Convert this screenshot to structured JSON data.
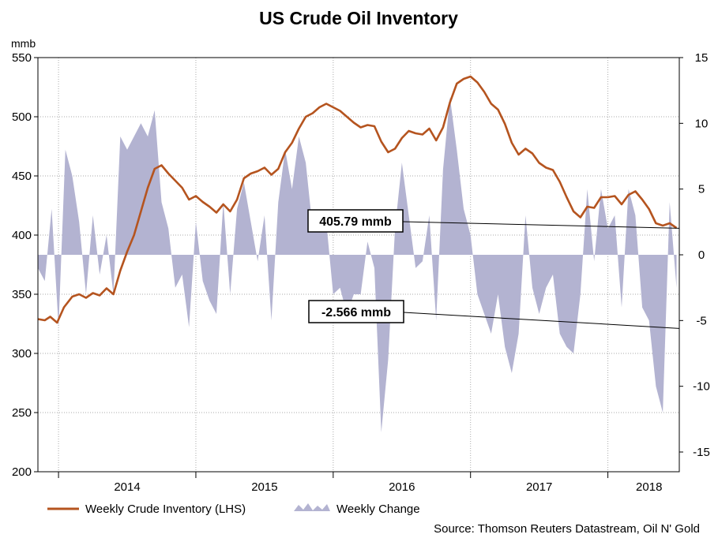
{
  "title": "US Crude Oil Inventory",
  "source": "Source: Thomson Reuters Datastream, Oil N' Gold",
  "colors": {
    "inventory_line": "#b5541f",
    "weekly_change": "#b3b3d1",
    "grid": "#aaaaaa"
  },
  "chart_data": {
    "type": "line",
    "y_left": {
      "unit": "mmb",
      "range": [
        200,
        550
      ],
      "ticks": [
        200,
        250,
        300,
        350,
        400,
        450,
        500,
        550
      ]
    },
    "y_right": {
      "range": [
        -16.5,
        15
      ],
      "ticks": [
        15,
        10,
        5,
        0,
        -5,
        -10,
        -15
      ]
    },
    "x": {
      "range": [
        2013.85,
        2018.52
      ],
      "tick_labels": [
        "2014",
        "2015",
        "2016",
        "2017",
        "2018"
      ],
      "tick_positions": [
        2014.5,
        2015.5,
        2016.5,
        2017.5,
        2018.3
      ],
      "gridlines": [
        2014,
        2015,
        2016,
        2017,
        2018
      ]
    },
    "grid": true,
    "legend_position": "bottom",
    "series": [
      {
        "name": "Weekly Crude Inventory (LHS)",
        "axis": "left",
        "type": "line",
        "points": [
          [
            2013.85,
            329
          ],
          [
            2013.9,
            328
          ],
          [
            2013.94,
            331
          ],
          [
            2013.99,
            326
          ],
          [
            2014.04,
            339
          ],
          [
            2014.1,
            348
          ],
          [
            2014.15,
            350
          ],
          [
            2014.2,
            347
          ],
          [
            2014.25,
            351
          ],
          [
            2014.3,
            349
          ],
          [
            2014.35,
            355
          ],
          [
            2014.4,
            350
          ],
          [
            2014.45,
            370
          ],
          [
            2014.5,
            386
          ],
          [
            2014.55,
            400
          ],
          [
            2014.6,
            420
          ],
          [
            2014.65,
            440
          ],
          [
            2014.7,
            456
          ],
          [
            2014.75,
            459
          ],
          [
            2014.8,
            452
          ],
          [
            2014.85,
            446
          ],
          [
            2014.9,
            440
          ],
          [
            2014.95,
            430
          ],
          [
            2015.0,
            433
          ],
          [
            2015.05,
            428
          ],
          [
            2015.1,
            424
          ],
          [
            2015.15,
            419
          ],
          [
            2015.2,
            426
          ],
          [
            2015.25,
            420
          ],
          [
            2015.3,
            430
          ],
          [
            2015.35,
            448
          ],
          [
            2015.4,
            452
          ],
          [
            2015.45,
            454
          ],
          [
            2015.5,
            457
          ],
          [
            2015.55,
            451
          ],
          [
            2015.6,
            456
          ],
          [
            2015.65,
            470
          ],
          [
            2015.7,
            478
          ],
          [
            2015.75,
            490
          ],
          [
            2015.8,
            500
          ],
          [
            2015.85,
            503
          ],
          [
            2015.9,
            508
          ],
          [
            2015.95,
            511
          ],
          [
            2016.0,
            508
          ],
          [
            2016.05,
            505
          ],
          [
            2016.1,
            500
          ],
          [
            2016.15,
            495
          ],
          [
            2016.2,
            491
          ],
          [
            2016.25,
            493
          ],
          [
            2016.3,
            492
          ],
          [
            2016.35,
            479
          ],
          [
            2016.4,
            470
          ],
          [
            2016.45,
            473
          ],
          [
            2016.5,
            482
          ],
          [
            2016.55,
            488
          ],
          [
            2016.6,
            486
          ],
          [
            2016.65,
            485
          ],
          [
            2016.7,
            490
          ],
          [
            2016.75,
            480
          ],
          [
            2016.8,
            491
          ],
          [
            2016.85,
            512
          ],
          [
            2016.9,
            528
          ],
          [
            2016.95,
            532
          ],
          [
            2017.0,
            534
          ],
          [
            2017.05,
            529
          ],
          [
            2017.1,
            521
          ],
          [
            2017.15,
            511
          ],
          [
            2017.2,
            506
          ],
          [
            2017.25,
            494
          ],
          [
            2017.3,
            478
          ],
          [
            2017.35,
            468
          ],
          [
            2017.4,
            473
          ],
          [
            2017.45,
            469
          ],
          [
            2017.5,
            461
          ],
          [
            2017.55,
            457
          ],
          [
            2017.6,
            455
          ],
          [
            2017.65,
            445
          ],
          [
            2017.7,
            432
          ],
          [
            2017.75,
            420
          ],
          [
            2017.8,
            415
          ],
          [
            2017.85,
            424
          ],
          [
            2017.9,
            423
          ],
          [
            2017.95,
            432
          ],
          [
            2018.0,
            432
          ],
          [
            2018.05,
            433
          ],
          [
            2018.1,
            426
          ],
          [
            2018.15,
            434
          ],
          [
            2018.2,
            437
          ],
          [
            2018.25,
            430
          ],
          [
            2018.3,
            422
          ],
          [
            2018.35,
            410
          ],
          [
            2018.4,
            408
          ],
          [
            2018.45,
            410
          ],
          [
            2018.5,
            406
          ]
        ]
      },
      {
        "name": "Weekly Change",
        "axis": "right",
        "type": "area",
        "points": [
          [
            2013.85,
            -1
          ],
          [
            2013.9,
            -2
          ],
          [
            2013.95,
            3.5
          ],
          [
            2014.0,
            -5.5
          ],
          [
            2014.05,
            8
          ],
          [
            2014.1,
            6
          ],
          [
            2014.15,
            2.5
          ],
          [
            2014.2,
            -3
          ],
          [
            2014.25,
            3
          ],
          [
            2014.3,
            -1.5
          ],
          [
            2014.35,
            1.5
          ],
          [
            2014.4,
            -3
          ],
          [
            2014.45,
            9
          ],
          [
            2014.5,
            8
          ],
          [
            2014.55,
            9
          ],
          [
            2014.6,
            10
          ],
          [
            2014.65,
            9
          ],
          [
            2014.7,
            11
          ],
          [
            2014.75,
            4
          ],
          [
            2014.8,
            2
          ],
          [
            2014.85,
            -2.5
          ],
          [
            2014.9,
            -1.5
          ],
          [
            2014.95,
            -5.5
          ],
          [
            2015.0,
            2.5
          ],
          [
            2015.05,
            -2
          ],
          [
            2015.1,
            -3.5
          ],
          [
            2015.15,
            -4.5
          ],
          [
            2015.2,
            4
          ],
          [
            2015.25,
            -3
          ],
          [
            2015.3,
            3.5
          ],
          [
            2015.35,
            5.5
          ],
          [
            2015.4,
            2.5
          ],
          [
            2015.45,
            -0.5
          ],
          [
            2015.5,
            3
          ],
          [
            2015.55,
            -5
          ],
          [
            2015.6,
            4
          ],
          [
            2015.65,
            8
          ],
          [
            2015.7,
            5
          ],
          [
            2015.75,
            9
          ],
          [
            2015.8,
            7
          ],
          [
            2015.85,
            2
          ],
          [
            2015.9,
            3
          ],
          [
            2015.95,
            2.5
          ],
          [
            2016.0,
            -3
          ],
          [
            2016.05,
            -2.5
          ],
          [
            2016.1,
            -4.5
          ],
          [
            2016.15,
            -3
          ],
          [
            2016.2,
            -3
          ],
          [
            2016.25,
            1
          ],
          [
            2016.3,
            -1
          ],
          [
            2016.35,
            -13.5
          ],
          [
            2016.4,
            -8
          ],
          [
            2016.45,
            2
          ],
          [
            2016.5,
            7
          ],
          [
            2016.55,
            3
          ],
          [
            2016.6,
            -1
          ],
          [
            2016.65,
            -0.5
          ],
          [
            2016.7,
            3
          ],
          [
            2016.75,
            -5
          ],
          [
            2016.8,
            6.5
          ],
          [
            2016.85,
            12
          ],
          [
            2016.9,
            8
          ],
          [
            2016.95,
            3.5
          ],
          [
            2017.0,
            1.5
          ],
          [
            2017.05,
            -3
          ],
          [
            2017.1,
            -4.5
          ],
          [
            2017.15,
            -6
          ],
          [
            2017.2,
            -3
          ],
          [
            2017.25,
            -7
          ],
          [
            2017.3,
            -9
          ],
          [
            2017.35,
            -6
          ],
          [
            2017.4,
            3
          ],
          [
            2017.45,
            -2.5
          ],
          [
            2017.5,
            -4.5
          ],
          [
            2017.55,
            -2.5
          ],
          [
            2017.6,
            -1.5
          ],
          [
            2017.65,
            -6
          ],
          [
            2017.7,
            -7
          ],
          [
            2017.75,
            -7.5
          ],
          [
            2017.8,
            -3
          ],
          [
            2017.85,
            5
          ],
          [
            2017.9,
            -0.5
          ],
          [
            2017.95,
            5
          ],
          [
            2018.0,
            2
          ],
          [
            2018.05,
            3
          ],
          [
            2018.1,
            -4
          ],
          [
            2018.15,
            5
          ],
          [
            2018.2,
            3
          ],
          [
            2018.25,
            -4
          ],
          [
            2018.3,
            -5
          ],
          [
            2018.35,
            -10
          ],
          [
            2018.4,
            -12
          ],
          [
            2018.45,
            4
          ],
          [
            2018.5,
            -2.5
          ]
        ]
      }
    ],
    "annotations": [
      {
        "text": "405.79 mmb",
        "target_series": "Weekly Crude Inventory (LHS)",
        "target_value": 405.79
      },
      {
        "text": "-2.566 mmb",
        "target_series": "Weekly Change",
        "target_value": -2.566
      }
    ]
  }
}
